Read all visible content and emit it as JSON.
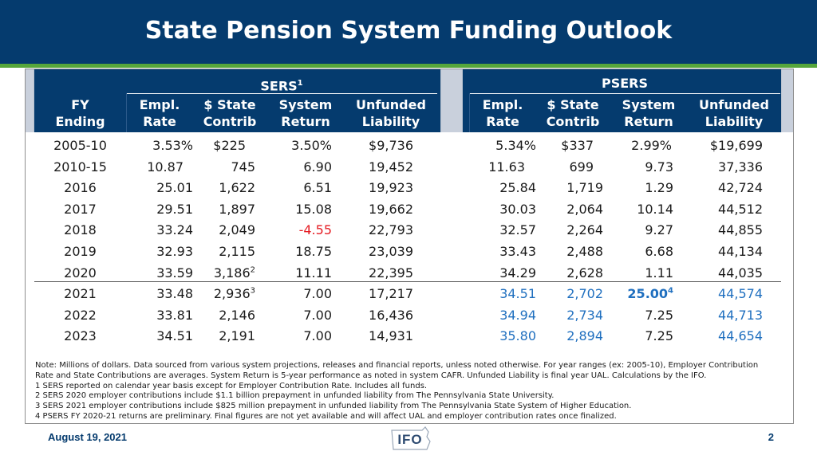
{
  "title": "State Pension System Funding Outlook",
  "colors": {
    "header": "#053b6e",
    "accent": "#56a63b",
    "negative": "#e51c23",
    "projected": "#1f6fbf",
    "headerGap": "#c9d0dc"
  },
  "groups": {
    "sers": "SERS",
    "sers_sup": "1",
    "psers": "PSERS"
  },
  "headers": {
    "fy": [
      "FY",
      "Ending"
    ],
    "empl": [
      "Empl.",
      "Rate"
    ],
    "state": [
      "$ State",
      "Contrib"
    ],
    "system": [
      "System",
      "Return"
    ],
    "unfunded": [
      "Unfunded",
      "Liability"
    ]
  },
  "rows": [
    {
      "fy": "2005-10",
      "se": "3.53%",
      "ss": "$225",
      "sr": "3.50%",
      "su": "$9,736",
      "pe": "5.34%",
      "ps": "$337",
      "pr": "2.99%",
      "pu": "$19,699"
    },
    {
      "fy": "2010-15",
      "se": "10.87",
      "ss": "745",
      "sr": "6.90",
      "su": "19,452",
      "pe": "11.63",
      "ps": "699",
      "pr": "9.73",
      "pu": "37,336"
    },
    {
      "fy": "2016",
      "se": "25.01",
      "ss": "1,622",
      "sr": "6.51",
      "su": "19,923",
      "pe": "25.84",
      "ps": "1,719",
      "pr": "1.29",
      "pu": "42,724"
    },
    {
      "fy": "2017",
      "se": "29.51",
      "ss": "1,897",
      "sr": "15.08",
      "su": "19,662",
      "pe": "30.03",
      "ps": "2,064",
      "pr": "10.14",
      "pu": "44,512"
    },
    {
      "fy": "2018",
      "se": "33.24",
      "ss": "2,049",
      "sr": "-4.55",
      "su": "22,793",
      "pe": "32.57",
      "ps": "2,264",
      "pr": "9.27",
      "pu": "44,855"
    },
    {
      "fy": "2019",
      "se": "32.93",
      "ss": "2,115",
      "sr": "18.75",
      "su": "23,039",
      "pe": "33.43",
      "ps": "2,488",
      "pr": "6.68",
      "pu": "44,134"
    },
    {
      "fy": "2020",
      "se": "33.59",
      "ss": "3,186",
      "ss_sup": "2",
      "sr": "11.11",
      "su": "22,395",
      "pe": "34.29",
      "ps": "2,628",
      "pr": "1.11",
      "pu": "44,035"
    },
    {
      "fy": "2021",
      "se": "33.48",
      "ss": "2,936",
      "ss_sup": "3",
      "sr": "7.00",
      "su": "17,217",
      "pe": "34.51",
      "ps": "2,702",
      "pr": "25.00",
      "pr_sup": "4",
      "pu": "44,574"
    },
    {
      "fy": "2022",
      "se": "33.81",
      "ss": "2,146",
      "sr": "7.00",
      "su": "16,436",
      "pe": "34.94",
      "ps": "2,734",
      "pr": "7.25",
      "pu": "44,713"
    },
    {
      "fy": "2023",
      "se": "34.51",
      "ss": "2,191",
      "sr": "7.00",
      "su": "14,931",
      "pe": "35.80",
      "ps": "2,894",
      "pr": "7.25",
      "pu": "44,654"
    }
  ],
  "notes": [
    "Note: Millions of dollars. Data sourced from various system projections, releases and financial reports, unless noted otherwise. For year ranges (ex: 2005-10), Employer Contribution",
    "Rate and State Contributions are averages. System Return is 5-year performance as noted in system CAFR. Unfunded Liability is final year UAL. Calculations by the IFO.",
    "1 SERS reported on calendar year basis except for Employer Contribution Rate. Includes all funds.",
    "2 SERS 2020 employer contributions include $1.1 billion prepayment in unfunded liability from The Pennsylvania State University.",
    "3 SERS 2021 employer contributions include $825 million prepayment in unfunded liability from The Pennsylvania State System of Higher Education.",
    "4 PSERS FY 2020-21 returns are preliminary. Final figures are not yet available and will affect UAL and employer contribution rates once finalized."
  ],
  "footer": {
    "date": "August 19, 2021",
    "page": "2",
    "logo": "IFO"
  }
}
